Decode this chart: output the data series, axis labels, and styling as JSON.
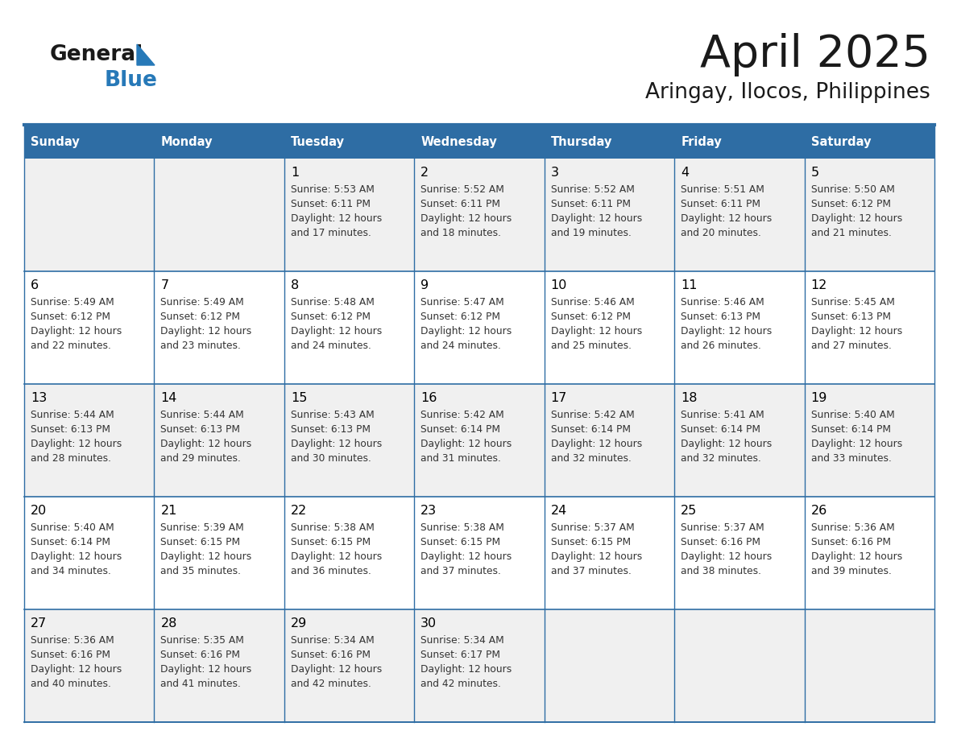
{
  "title": "April 2025",
  "subtitle": "Aringay, Ilocos, Philippines",
  "days_of_week": [
    "Sunday",
    "Monday",
    "Tuesday",
    "Wednesday",
    "Thursday",
    "Friday",
    "Saturday"
  ],
  "header_bg_color": "#2E6DA4",
  "header_text_color": "#FFFFFF",
  "cell_bg_odd": "#F0F0F0",
  "cell_bg_even": "#FFFFFF",
  "border_color": "#2E6DA4",
  "day_number_color": "#000000",
  "day_text_color": "#333333",
  "logo_general_color": "#1a1a1a",
  "logo_blue_color": "#2779B8",
  "calendar_data": [
    [
      {
        "day": "",
        "sunrise": "",
        "sunset": "",
        "daylight_min": ""
      },
      {
        "day": "",
        "sunrise": "",
        "sunset": "",
        "daylight_min": ""
      },
      {
        "day": "1",
        "sunrise": "5:53 AM",
        "sunset": "6:11 PM",
        "daylight_min": "17"
      },
      {
        "day": "2",
        "sunrise": "5:52 AM",
        "sunset": "6:11 PM",
        "daylight_min": "18"
      },
      {
        "day": "3",
        "sunrise": "5:52 AM",
        "sunset": "6:11 PM",
        "daylight_min": "19"
      },
      {
        "day": "4",
        "sunrise": "5:51 AM",
        "sunset": "6:11 PM",
        "daylight_min": "20"
      },
      {
        "day": "5",
        "sunrise": "5:50 AM",
        "sunset": "6:12 PM",
        "daylight_min": "21"
      }
    ],
    [
      {
        "day": "6",
        "sunrise": "5:49 AM",
        "sunset": "6:12 PM",
        "daylight_min": "22"
      },
      {
        "day": "7",
        "sunrise": "5:49 AM",
        "sunset": "6:12 PM",
        "daylight_min": "23"
      },
      {
        "day": "8",
        "sunrise": "5:48 AM",
        "sunset": "6:12 PM",
        "daylight_min": "24"
      },
      {
        "day": "9",
        "sunrise": "5:47 AM",
        "sunset": "6:12 PM",
        "daylight_min": "24"
      },
      {
        "day": "10",
        "sunrise": "5:46 AM",
        "sunset": "6:12 PM",
        "daylight_min": "25"
      },
      {
        "day": "11",
        "sunrise": "5:46 AM",
        "sunset": "6:13 PM",
        "daylight_min": "26"
      },
      {
        "day": "12",
        "sunrise": "5:45 AM",
        "sunset": "6:13 PM",
        "daylight_min": "27"
      }
    ],
    [
      {
        "day": "13",
        "sunrise": "5:44 AM",
        "sunset": "6:13 PM",
        "daylight_min": "28"
      },
      {
        "day": "14",
        "sunrise": "5:44 AM",
        "sunset": "6:13 PM",
        "daylight_min": "29"
      },
      {
        "day": "15",
        "sunrise": "5:43 AM",
        "sunset": "6:13 PM",
        "daylight_min": "30"
      },
      {
        "day": "16",
        "sunrise": "5:42 AM",
        "sunset": "6:14 PM",
        "daylight_min": "31"
      },
      {
        "day": "17",
        "sunrise": "5:42 AM",
        "sunset": "6:14 PM",
        "daylight_min": "32"
      },
      {
        "day": "18",
        "sunrise": "5:41 AM",
        "sunset": "6:14 PM",
        "daylight_min": "32"
      },
      {
        "day": "19",
        "sunrise": "5:40 AM",
        "sunset": "6:14 PM",
        "daylight_min": "33"
      }
    ],
    [
      {
        "day": "20",
        "sunrise": "5:40 AM",
        "sunset": "6:14 PM",
        "daylight_min": "34"
      },
      {
        "day": "21",
        "sunrise": "5:39 AM",
        "sunset": "6:15 PM",
        "daylight_min": "35"
      },
      {
        "day": "22",
        "sunrise": "5:38 AM",
        "sunset": "6:15 PM",
        "daylight_min": "36"
      },
      {
        "day": "23",
        "sunrise": "5:38 AM",
        "sunset": "6:15 PM",
        "daylight_min": "37"
      },
      {
        "day": "24",
        "sunrise": "5:37 AM",
        "sunset": "6:15 PM",
        "daylight_min": "37"
      },
      {
        "day": "25",
        "sunrise": "5:37 AM",
        "sunset": "6:16 PM",
        "daylight_min": "38"
      },
      {
        "day": "26",
        "sunrise": "5:36 AM",
        "sunset": "6:16 PM",
        "daylight_min": "39"
      }
    ],
    [
      {
        "day": "27",
        "sunrise": "5:36 AM",
        "sunset": "6:16 PM",
        "daylight_min": "40"
      },
      {
        "day": "28",
        "sunrise": "5:35 AM",
        "sunset": "6:16 PM",
        "daylight_min": "41"
      },
      {
        "day": "29",
        "sunrise": "5:34 AM",
        "sunset": "6:16 PM",
        "daylight_min": "42"
      },
      {
        "day": "30",
        "sunrise": "5:34 AM",
        "sunset": "6:17 PM",
        "daylight_min": "42"
      },
      {
        "day": "",
        "sunrise": "",
        "sunset": "",
        "daylight_min": ""
      },
      {
        "day": "",
        "sunrise": "",
        "sunset": "",
        "daylight_min": ""
      },
      {
        "day": "",
        "sunrise": "",
        "sunset": "",
        "daylight_min": ""
      }
    ]
  ],
  "num_rows": 5,
  "num_cols": 7
}
